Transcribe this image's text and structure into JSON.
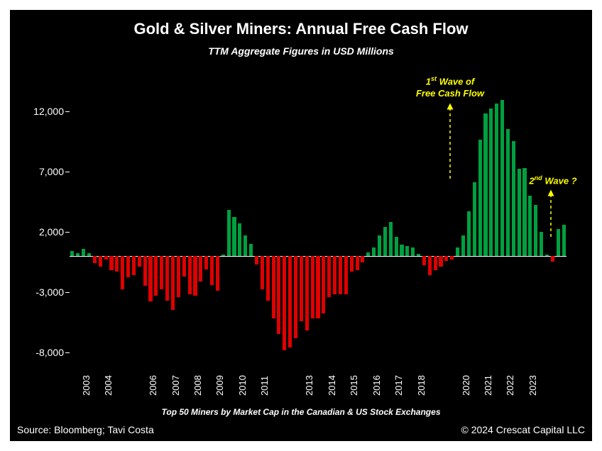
{
  "title": "Gold & Silver Miners: Annual Free Cash Flow",
  "subtitle": "TTM Aggregate Figures in USD Millions",
  "footnote": "Top 50 Miners by Market Cap in the Canadian & US Stock Exchanges",
  "source": "Source: Bloomberg; Tavi Costa",
  "copyright": "© 2024 Crescat Capital LLC",
  "annotation1_line1": "1",
  "annotation1_sup": "st",
  "annotation1_rest": " Wave of",
  "annotation1_line2": "Free Cash Flow",
  "annotation2_line1": "2",
  "annotation2_sup": "nd",
  "annotation2_rest": " Wave ?",
  "chart": {
    "type": "bar",
    "background_color": "#000000",
    "positive_color": "#00a040",
    "negative_color": "#e00000",
    "axis_color": "#ffffff",
    "annotation_color": "#ffff00",
    "title_fontsize": 22,
    "subtitle_fontsize": 14,
    "label_fontsize": 14,
    "ylim": [
      -9000,
      14500
    ],
    "yticks": [
      -8000,
      -3000,
      2000,
      7000,
      12000
    ],
    "ytick_labels": [
      "-8,000",
      "-3,000",
      "2,000",
      "7,000",
      "12,000"
    ],
    "year_breaks": [
      0,
      4,
      8,
      12,
      16,
      20,
      24,
      28,
      32,
      36,
      40,
      44,
      48,
      52,
      56,
      60,
      64,
      68,
      72,
      76,
      80,
      84
    ],
    "year_labels": [
      "2003",
      "2004",
      "",
      "2006",
      "2007",
      "2008",
      "2009",
      "2010",
      "2011",
      "",
      "2013",
      "2014",
      "2015",
      "2016",
      "2017",
      "2018",
      "",
      "2020",
      "2021",
      "2022",
      "2023",
      ""
    ],
    "values": [
      400,
      200,
      600,
      250,
      -600,
      -900,
      -300,
      -1200,
      -1300,
      -2800,
      -1800,
      -1600,
      -900,
      -2500,
      -3800,
      -3300,
      -2800,
      -3700,
      -4500,
      -3400,
      -1700,
      -3200,
      -3300,
      -2100,
      -1100,
      -2400,
      -2900,
      100,
      3800,
      3200,
      2700,
      1700,
      1000,
      -700,
      -2800,
      -3700,
      -5200,
      -6500,
      -7800,
      -7600,
      -6800,
      -5400,
      -6200,
      -5200,
      -5200,
      -4800,
      -3400,
      -3200,
      -3200,
      -3200,
      -1300,
      -1200,
      -550,
      300,
      700,
      1700,
      2400,
      2800,
      1600,
      900,
      800,
      700,
      150,
      -800,
      -1600,
      -1200,
      -900,
      -400,
      -300,
      700,
      1700,
      3700,
      6100,
      9600,
      11800,
      12200,
      12600,
      12900,
      10500,
      9500,
      7200,
      7300,
      5000,
      4200,
      2000,
      100,
      -500,
      2200,
      2600
    ]
  }
}
